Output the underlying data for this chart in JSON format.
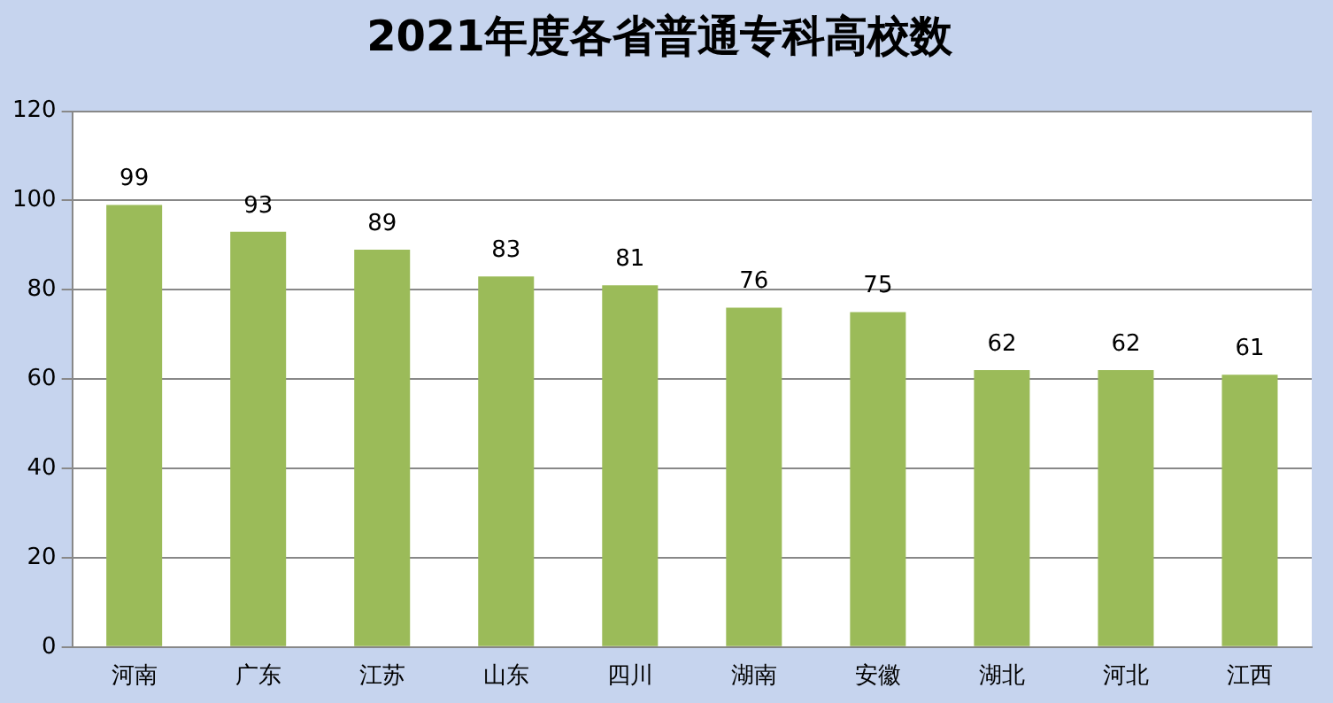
{
  "chart_data": {
    "type": "bar",
    "title": "2021年度各省普通专科高校数",
    "categories": [
      "河南",
      "广东",
      "江苏",
      "山东",
      "四川",
      "湖南",
      "安徽",
      "湖北",
      "河北",
      "江西"
    ],
    "values": [
      99,
      93,
      89,
      83,
      81,
      76,
      75,
      62,
      62,
      61
    ],
    "color": "#9bbb59",
    "ylim": [
      0,
      120
    ],
    "yticks": [
      0,
      20,
      40,
      60,
      80,
      100,
      120
    ],
    "grid": "y",
    "data_labels": true,
    "legend": false
  }
}
